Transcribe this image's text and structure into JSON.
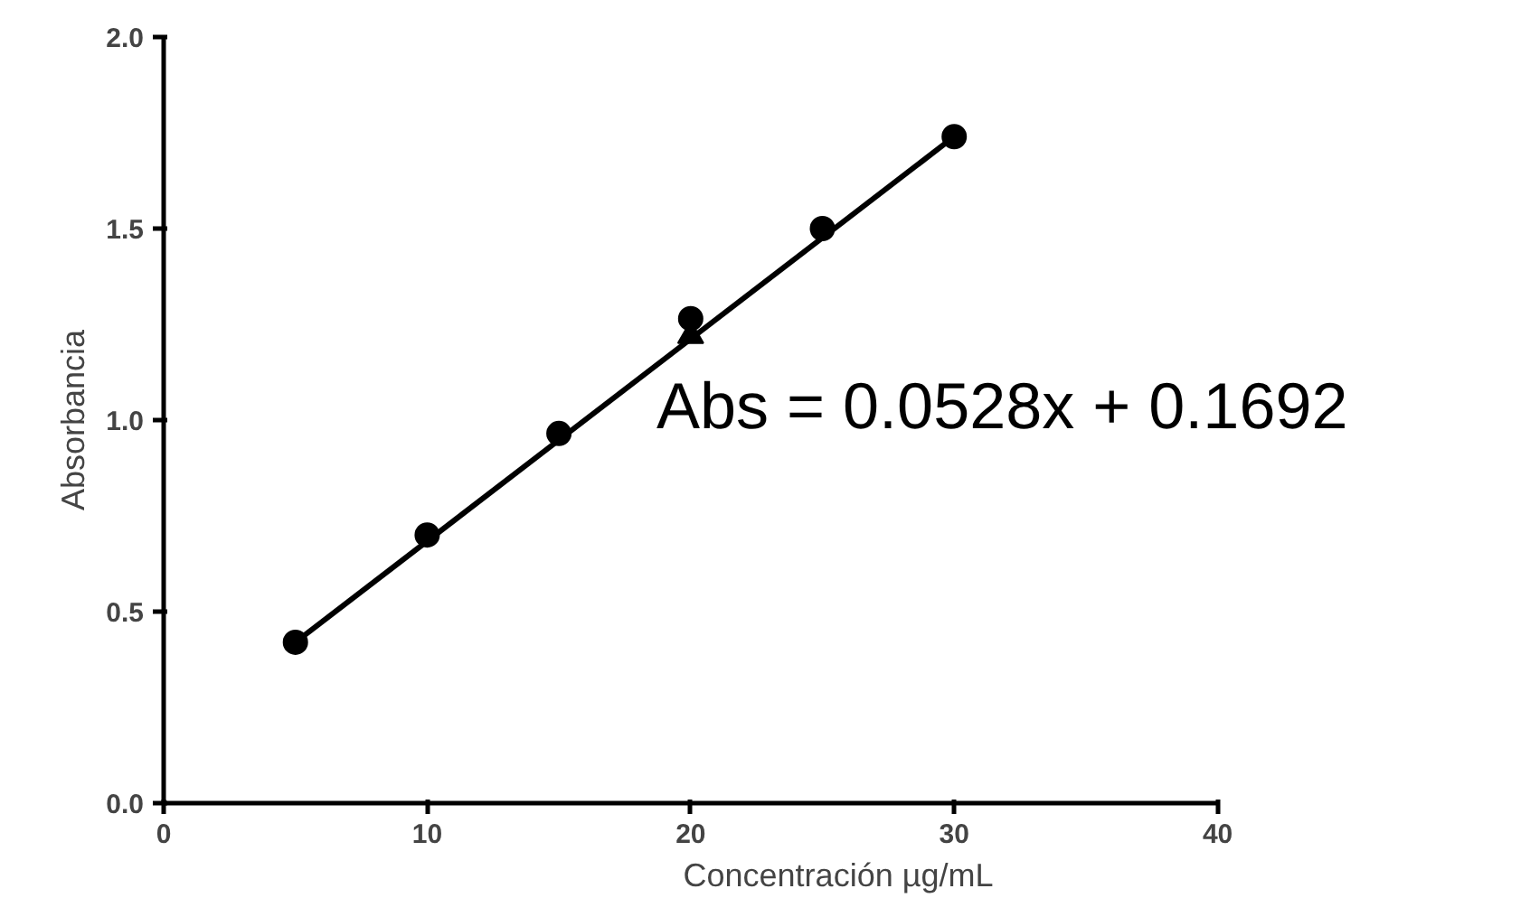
{
  "chart_data": {
    "type": "scatter",
    "xlabel": "Concentración µg/mL",
    "ylabel": "Absorbancia",
    "x": [
      5,
      10,
      15,
      20,
      25,
      30
    ],
    "series": [
      {
        "color": "#000000",
        "marker": "circle",
        "values": [
          0.42,
          0.7,
          0.965,
          1.265,
          1.5,
          1.74
        ]
      },
      {
        "color": "#000000",
        "marker": "triangle",
        "values": [
          null,
          null,
          null,
          1.22,
          null,
          null
        ]
      },
      {
        "type": "line",
        "color": "#000000",
        "marker": "none",
        "x": [
          5,
          30
        ],
        "values": [
          0.42,
          1.74
        ]
      }
    ],
    "annotations": [
      "Abs = 0.0528x + 0.1692"
    ],
    "xlim": [
      0,
      40
    ],
    "ylim": [
      0,
      2.0
    ],
    "xticks": [
      0,
      10,
      20,
      30,
      40
    ],
    "yticks": [
      {
        "value": 0,
        "label": "0.0"
      },
      {
        "value": 0.5,
        "label": "0.5"
      },
      {
        "value": 1,
        "label": "1.0"
      },
      {
        "value": 1.5,
        "label": "1.5"
      },
      {
        "value": 2,
        "label": "2.0"
      }
    ],
    "grid": false
  }
}
